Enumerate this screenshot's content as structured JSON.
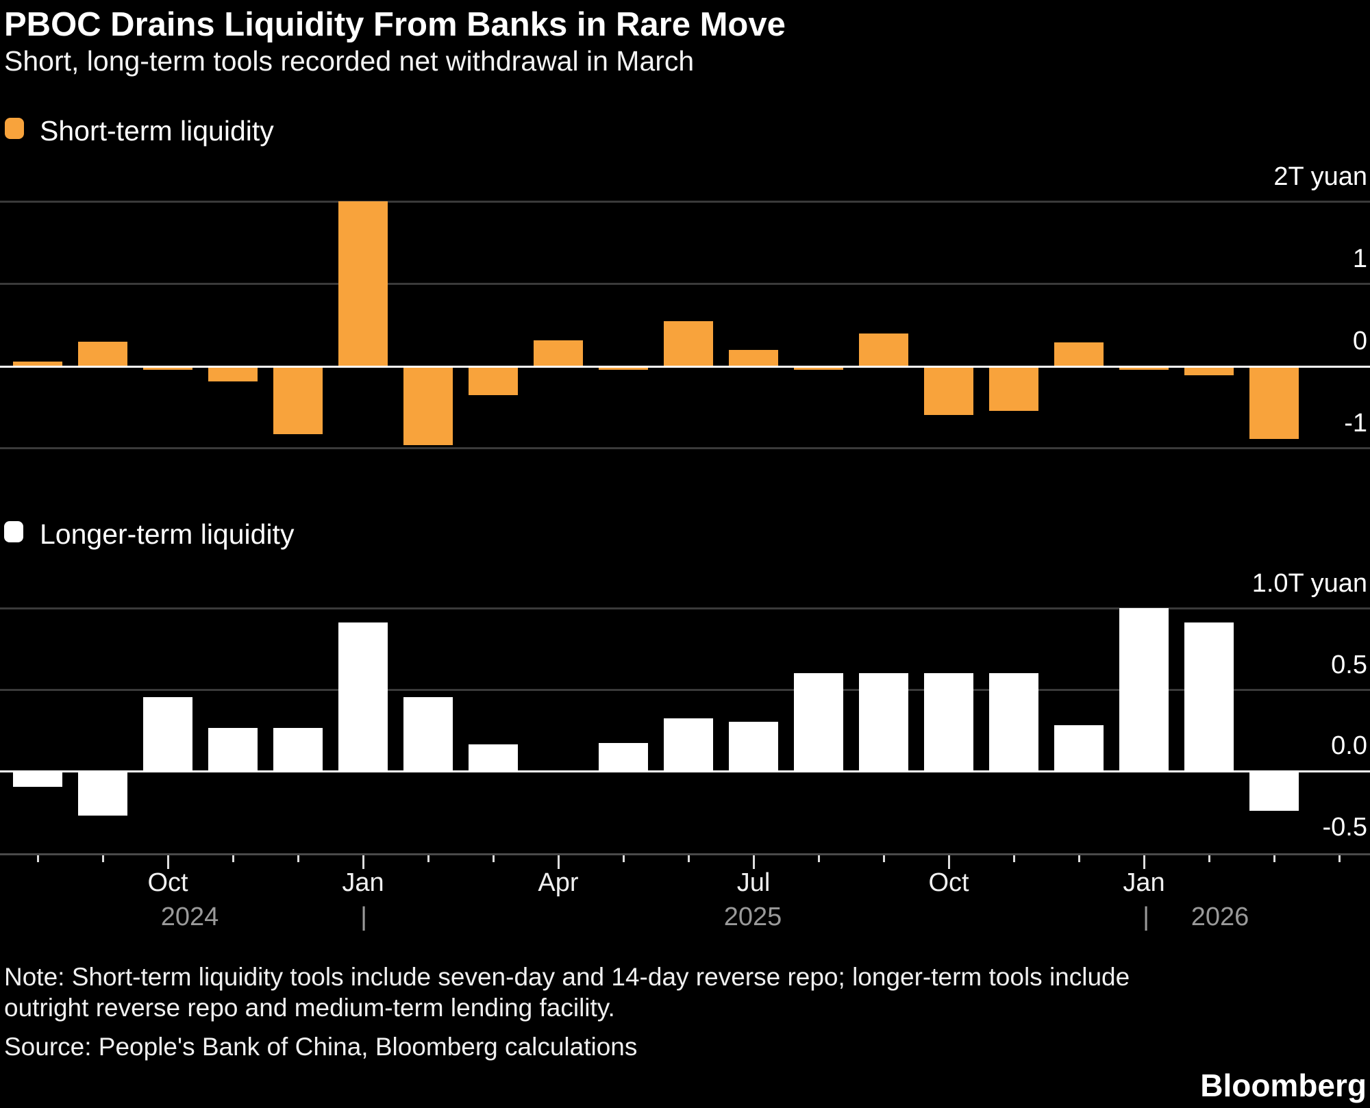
{
  "header": {
    "title": "PBOC Drains Liquidity From Banks in Rare Move",
    "subtitle": "Short, long-term tools recorded net withdrawal in March"
  },
  "footer": {
    "note_line1": "Note: Short-term liquidity tools include seven-day and 14-day reverse repo; longer-term tools include",
    "note_line2": "outright reverse repo and medium-term lending facility.",
    "source": "Source: People's Bank of China, Bloomberg calculations",
    "brand": "Bloomberg"
  },
  "colors": {
    "background": "#000000",
    "bar_orange": "#F8A33C",
    "bar_white": "#FFFFFF",
    "grid": "#3A3A3A",
    "axis_line": "#4A4A4A",
    "tick": "#DDDDDD",
    "year_text": "#9A9A9A",
    "text": "#FFFFFF"
  },
  "axis": {
    "tick_labels": [
      "",
      "",
      "Oct",
      "",
      "",
      "Jan",
      "",
      "",
      "Apr",
      "",
      "",
      "Jul",
      "",
      "",
      "Oct",
      "",
      "",
      "Jan",
      "",
      "",
      ""
    ],
    "year_row": [
      "2024",
      "|",
      "2025",
      "|",
      "2026"
    ]
  },
  "chart_data": [
    {
      "type": "bar",
      "legend": "Short-term liquidity",
      "color_key": "bar_orange",
      "unit": "trillion yuan",
      "categories": [
        "Aug 2024",
        "Sep 2024",
        "Oct 2024",
        "Nov 2024",
        "Dec 2024",
        "Jan 2025",
        "Feb 2025",
        "Mar 2025",
        "Apr 2025",
        "May 2025",
        "Jun 2025",
        "Jul 2025",
        "Aug 2025",
        "Sep 2025",
        "Oct 2025",
        "Nov 2025",
        "Dec 2025",
        "Jan 2026",
        "Feb 2026",
        "Mar 2026"
      ],
      "values": [
        0.05,
        0.29,
        -0.04,
        -0.19,
        -0.83,
        2.0,
        -0.97,
        -0.36,
        0.31,
        -0.03,
        0.54,
        0.19,
        -0.05,
        0.39,
        -0.6,
        -0.55,
        0.28,
        -0.04,
        -0.12,
        -0.89
      ],
      "yticks": [
        {
          "v": 2,
          "label": "2T yuan"
        },
        {
          "v": 1,
          "label": "1"
        },
        {
          "v": 0,
          "label": "0"
        },
        {
          "v": -1,
          "label": "-1"
        }
      ],
      "grid_values": [
        2,
        1,
        -1
      ],
      "ylim": [
        -1.0,
        2.0
      ],
      "grid": true,
      "legend_position": "top-left"
    },
    {
      "type": "bar",
      "legend": "Longer-term liquidity",
      "color_key": "bar_white",
      "unit": "trillion yuan",
      "categories": [
        "Aug 2024",
        "Sep 2024",
        "Oct 2024",
        "Nov 2024",
        "Dec 2024",
        "Jan 2025",
        "Feb 2025",
        "Mar 2025",
        "Apr 2025",
        "May 2025",
        "Jun 2025",
        "Jul 2025",
        "Aug 2025",
        "Sep 2025",
        "Oct 2025",
        "Nov 2025",
        "Dec 2025",
        "Jan 2026",
        "Feb 2026",
        "Mar 2026"
      ],
      "values": [
        -0.1,
        -0.28,
        0.45,
        0.26,
        0.26,
        0.91,
        0.45,
        0.16,
        0.0,
        0.17,
        0.32,
        0.3,
        0.6,
        0.6,
        0.6,
        0.6,
        0.28,
        1.0,
        0.91,
        -0.25
      ],
      "yticks": [
        {
          "v": 1,
          "label": "1.0T yuan"
        },
        {
          "v": 0.5,
          "label": "0.5"
        },
        {
          "v": 0,
          "label": "0.0"
        },
        {
          "v": -0.5,
          "label": "-0.5"
        }
      ],
      "grid_values": [
        1,
        0.5
      ],
      "ylim": [
        -0.5,
        1.0
      ],
      "grid": true,
      "legend_position": "top-left"
    }
  ]
}
